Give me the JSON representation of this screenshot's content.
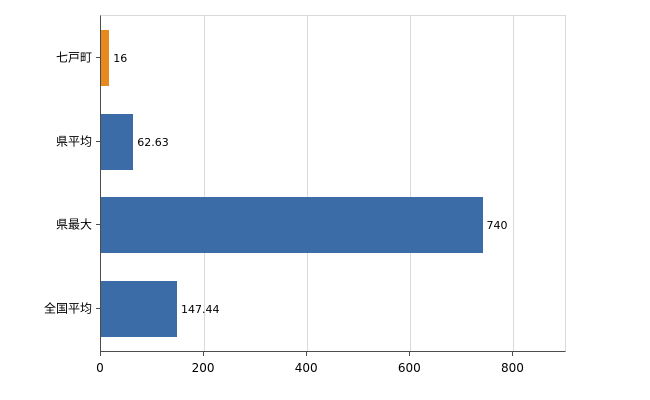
{
  "chart_data": {
    "type": "bar",
    "orientation": "horizontal",
    "title": "",
    "xlabel": "",
    "ylabel": "",
    "categories": [
      "七戸町",
      "県平均",
      "県最大",
      "全国平均"
    ],
    "values": [
      16,
      62.63,
      740,
      147.44
    ],
    "value_labels": [
      "16",
      "62.63",
      "740",
      "147.44"
    ],
    "bar_colors": [
      "#e8891e",
      "#3c6ca8",
      "#3c6ca8",
      "#3c6ca8"
    ],
    "xlim": [
      0,
      900
    ],
    "x_ticks": [
      0,
      200,
      400,
      600,
      800
    ],
    "grid": "vertical",
    "legend": "none"
  },
  "colors": {
    "highlight_bar": "#e8891e",
    "default_bar": "#3c6ca8",
    "gridline": "#d9d9d9",
    "axis": "#4d4d4d",
    "text": "#000000",
    "background": "#ffffff"
  }
}
